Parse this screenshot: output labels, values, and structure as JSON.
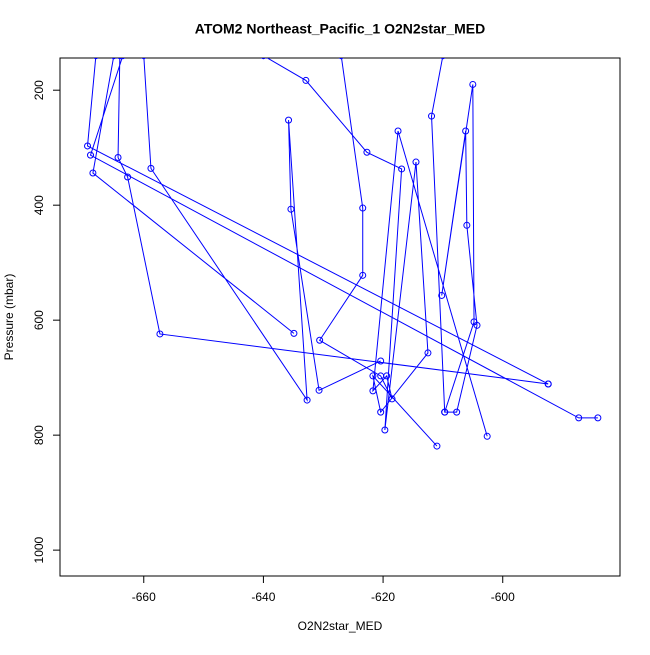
{
  "chart_data": {
    "type": "line",
    "title": "ATOM2 Northeast_Pacific_1 O2N2star_MED",
    "x_label": "O2N2star_MED",
    "y_label": "Pressure (mbar)",
    "color": "#0000ff",
    "markers": true,
    "y_reversed": true,
    "x": [
      -668,
      -669.4,
      -592.4,
      null,
      -663.5,
      -668.9,
      -587.3,
      -584.1,
      null,
      -665,
      -668.5,
      -634.9,
      null,
      -664,
      -664.3,
      -662.7,
      -657.3,
      -592.4,
      null,
      -660,
      -658.8,
      -632.7,
      -635.8,
      -635.4,
      -630.7,
      -620.4,
      null,
      -640,
      -632.9,
      -622.7,
      -616.9,
      -619.7,
      -614.5,
      -612.5,
      -620.4,
      -621.7,
      -611.0,
      null,
      -627,
      -623.4,
      -623.4,
      -630.6,
      -620.4,
      -618.5,
      -619.4,
      -621.7,
      -617.5,
      -602.6,
      null,
      -610,
      -611.9,
      -609.7,
      -607.7,
      -604.3,
      -606.0,
      -606.2,
      -610.2,
      -605.0,
      -604.8,
      -609.7
    ],
    "values": [
      140,
      297,
      711,
      null,
      140,
      313,
      770,
      770,
      null,
      140,
      344,
      623,
      null,
      140,
      317,
      351,
      624,
      711,
      null,
      140,
      336,
      739,
      252,
      407,
      722,
      671,
      null,
      140,
      183,
      308,
      337,
      791,
      325,
      657,
      760,
      697,
      819,
      null,
      140,
      405,
      522,
      635,
      697,
      737,
      697,
      723,
      271,
      802,
      null,
      140,
      245,
      760,
      760,
      609,
      435,
      271,
      557,
      190,
      603,
      760
    ],
    "xlim": [
      -674,
      -580.4
    ],
    "ylim": [
      1045,
      144
    ],
    "xticks": [
      -660,
      -640,
      -620,
      -600
    ],
    "yticks": [
      200,
      400,
      600,
      800,
      1000
    ]
  }
}
